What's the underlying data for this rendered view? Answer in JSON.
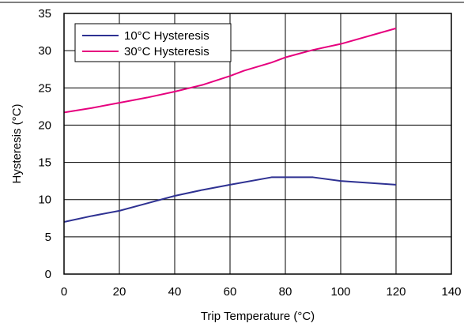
{
  "chart_data": {
    "type": "line",
    "xlabel": "Trip Temperature (°C)",
    "ylabel": "Hysteresis (°C)",
    "xlim": [
      0,
      140
    ],
    "ylim": [
      0,
      35
    ],
    "xticks": [
      0,
      20,
      40,
      60,
      80,
      100,
      120,
      140
    ],
    "yticks": [
      0,
      5,
      10,
      15,
      20,
      25,
      30,
      35
    ],
    "grid": true,
    "legend_position": "top-left",
    "series": [
      {
        "name": "10°C Hysteresis",
        "color": "#2e3192",
        "points": [
          [
            0,
            7
          ],
          [
            10,
            7.8
          ],
          [
            20,
            8.5
          ],
          [
            30,
            9.5
          ],
          [
            40,
            10.5
          ],
          [
            50,
            11.3
          ],
          [
            60,
            12
          ],
          [
            75,
            13
          ],
          [
            90,
            13
          ],
          [
            100,
            12.5
          ],
          [
            120,
            12
          ]
        ]
      },
      {
        "name": "30°C Hysteresis",
        "color": "#e6007e",
        "points": [
          [
            0,
            21.7
          ],
          [
            10,
            22.3
          ],
          [
            20,
            23
          ],
          [
            30,
            23.7
          ],
          [
            40,
            24.5
          ],
          [
            50,
            25.4
          ],
          [
            60,
            26.6
          ],
          [
            65,
            27.3
          ],
          [
            75,
            28.4
          ],
          [
            80,
            29.1
          ],
          [
            90,
            30.1
          ],
          [
            100,
            30.9
          ],
          [
            120,
            33
          ]
        ]
      }
    ]
  }
}
